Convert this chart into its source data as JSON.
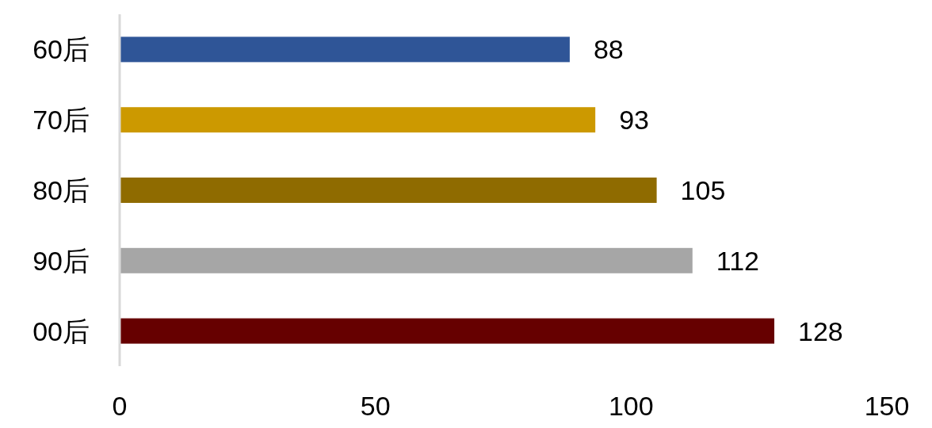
{
  "chart_data": {
    "type": "bar",
    "orientation": "horizontal",
    "categories": [
      "60后",
      "70后",
      "80后",
      "90后",
      "00后"
    ],
    "values": [
      88,
      93,
      105,
      112,
      128
    ],
    "colors": [
      "#2f5597",
      "#cc9900",
      "#8f6b00",
      "#a6a6a6",
      "#660000"
    ],
    "xlim": [
      0,
      150
    ],
    "xticks": [
      0,
      50,
      100,
      150
    ],
    "data_labels": true
  }
}
